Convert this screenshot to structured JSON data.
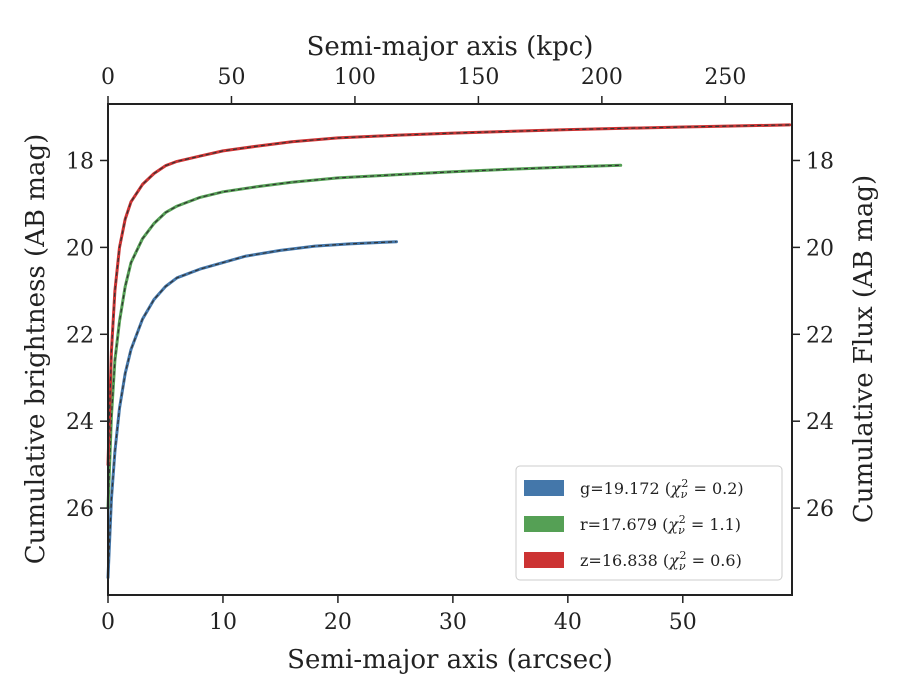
{
  "chart_data": {
    "type": "line",
    "xlabel": "Semi-major axis (arcsec)",
    "x2label": "Semi-major axis (kpc)",
    "ylabel": "Cumulative brightness (AB mag)",
    "y2label": "Cumulative Flux (AB mag)",
    "xlim": [
      0,
      59.5
    ],
    "x2lim": [
      0,
      277
    ],
    "ylim": [
      28.0,
      16.7
    ],
    "y_inverted": true,
    "xticks": [
      0,
      10,
      20,
      30,
      40,
      50
    ],
    "x2ticks": [
      0,
      50,
      100,
      150,
      200,
      250
    ],
    "yticks": [
      18,
      20,
      22,
      24,
      26
    ],
    "legend_position": "lower-right",
    "grid": false,
    "series": [
      {
        "name": "g=19.172",
        "chi2": "0.2",
        "color": "#4477aa",
        "x": [
          0,
          0.3,
          0.6,
          1,
          1.5,
          2,
          3,
          4,
          5,
          6,
          8,
          10,
          12,
          15,
          18,
          21,
          25.1
        ],
        "y": [
          27.6,
          25.8,
          24.7,
          23.7,
          22.9,
          22.35,
          21.65,
          21.2,
          20.9,
          20.7,
          20.5,
          20.35,
          20.2,
          20.07,
          19.97,
          19.92,
          19.87
        ]
      },
      {
        "name": "r=17.679",
        "chi2": "1.1",
        "color": "#55a055",
        "x": [
          0,
          0.3,
          0.6,
          1,
          1.5,
          2,
          3,
          4,
          5,
          6,
          8,
          10,
          13,
          16,
          20,
          25,
          30,
          35,
          40,
          44.6
        ],
        "y": [
          26.0,
          23.9,
          22.6,
          21.7,
          20.9,
          20.35,
          19.8,
          19.45,
          19.2,
          19.05,
          18.85,
          18.72,
          18.6,
          18.5,
          18.4,
          18.33,
          18.26,
          18.2,
          18.15,
          18.11
        ]
      },
      {
        "name": "z=16.838",
        "chi2": "0.6",
        "color": "#cc3333",
        "x": [
          0,
          0.3,
          0.6,
          1,
          1.5,
          2,
          3,
          4,
          5,
          6,
          8,
          10,
          13,
          16,
          20,
          25,
          30,
          40,
          50,
          59.3
        ],
        "y": [
          25.0,
          22.4,
          21.0,
          20.0,
          19.35,
          18.95,
          18.55,
          18.3,
          18.12,
          18.02,
          17.9,
          17.78,
          17.67,
          17.57,
          17.48,
          17.42,
          17.37,
          17.29,
          17.23,
          17.18
        ]
      }
    ]
  }
}
